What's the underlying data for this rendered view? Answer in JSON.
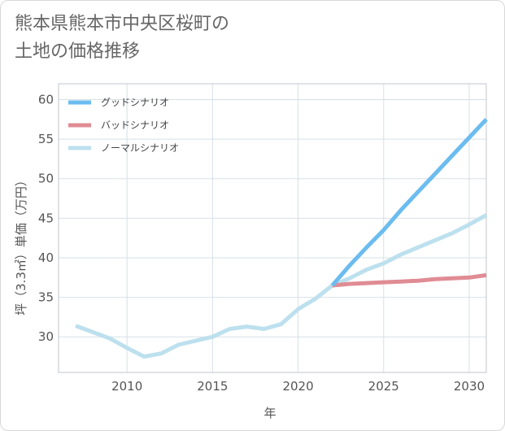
{
  "title_lines": [
    "熊本県熊本市中央区桜町の",
    "土地の価格推移"
  ],
  "chart_data": {
    "type": "line",
    "xlabel": "年",
    "ylabel": "坪（3.3㎡）単価（万円）",
    "xlim": [
      2006,
      2031
    ],
    "ylim": [
      25.5,
      62
    ],
    "xticks": [
      2010,
      2015,
      2020,
      2025,
      2030
    ],
    "yticks": [
      30,
      35,
      40,
      45,
      50,
      55,
      60
    ],
    "grid": true,
    "legend_position": "top-left",
    "series": [
      {
        "name": "グッドシナリオ",
        "color": "#6bbcf0",
        "x": [
          2022,
          2023,
          2024,
          2025,
          2026,
          2027,
          2028,
          2029,
          2030,
          2031
        ],
        "y": [
          36.5,
          39.0,
          41.3,
          43.5,
          46.0,
          48.3,
          50.6,
          52.9,
          55.2,
          57.5
        ]
      },
      {
        "name": "バッドシナリオ",
        "color": "#e08c94",
        "x": [
          2022,
          2023,
          2024,
          2025,
          2026,
          2027,
          2028,
          2029,
          2030,
          2031
        ],
        "y": [
          36.5,
          36.7,
          36.8,
          36.9,
          37.0,
          37.1,
          37.3,
          37.4,
          37.5,
          37.8
        ]
      },
      {
        "name": "ノーマルシナリオ",
        "color": "#bde0ee",
        "x": [
          2007,
          2008,
          2009,
          2010,
          2011,
          2012,
          2013,
          2014,
          2015,
          2016,
          2017,
          2018,
          2019,
          2020,
          2021,
          2022,
          2023,
          2024,
          2025,
          2026,
          2027,
          2028,
          2029,
          2030,
          2031
        ],
        "y": [
          31.4,
          30.6,
          29.8,
          28.6,
          27.5,
          27.9,
          29.0,
          29.5,
          30.0,
          31.0,
          31.3,
          31.0,
          31.6,
          33.5,
          34.8,
          36.5,
          37.4,
          38.5,
          39.3,
          40.4,
          41.3,
          42.2,
          43.1,
          44.2,
          45.4
        ]
      }
    ]
  }
}
